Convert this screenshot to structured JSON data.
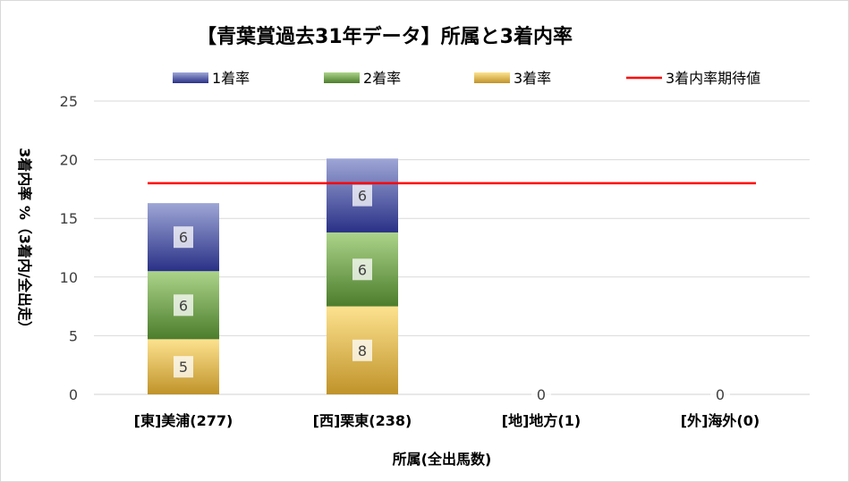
{
  "chart_data": {
    "type": "bar",
    "stacked": true,
    "title": "【青葉賞過去31年データ】所属と3着内率",
    "xlabel": "所属(全出馬数)",
    "ylabel": "3着内率 %（3着内/全出走）",
    "ylim": [
      0,
      25
    ],
    "yticks": [
      "0",
      "5",
      "10",
      "15",
      "20",
      "25"
    ],
    "grid": true,
    "legend_position": "top",
    "categories": [
      "[東]美浦(277)",
      "[西]栗東(238)",
      "[地]地方(1)",
      "[外]海外(0)"
    ],
    "series": [
      {
        "name": "3着率",
        "values": [
          4.7,
          7.5,
          0,
          0
        ],
        "labels": [
          "5",
          "8",
          "0",
          "0"
        ],
        "colors": {
          "top": "#fde28f",
          "bottom": "#c0932a"
        }
      },
      {
        "name": "2着率",
        "values": [
          5.8,
          6.3,
          0,
          0
        ],
        "labels": [
          "6",
          "6",
          "",
          ""
        ],
        "colors": {
          "top": "#acd48a",
          "bottom": "#4c7d2c"
        }
      },
      {
        "name": "1着率",
        "values": [
          5.8,
          6.3,
          0,
          0
        ],
        "labels": [
          "6",
          "6",
          "",
          ""
        ],
        "colors": {
          "top": "#9ea6d6",
          "bottom": "#2a3187"
        }
      }
    ],
    "reference_line": {
      "name": "3着内率期待値",
      "value": 18.0,
      "color": "#ff0000"
    },
    "legend_order": [
      "1着率",
      "2着率",
      "3着率",
      "3着内率期待値"
    ]
  }
}
